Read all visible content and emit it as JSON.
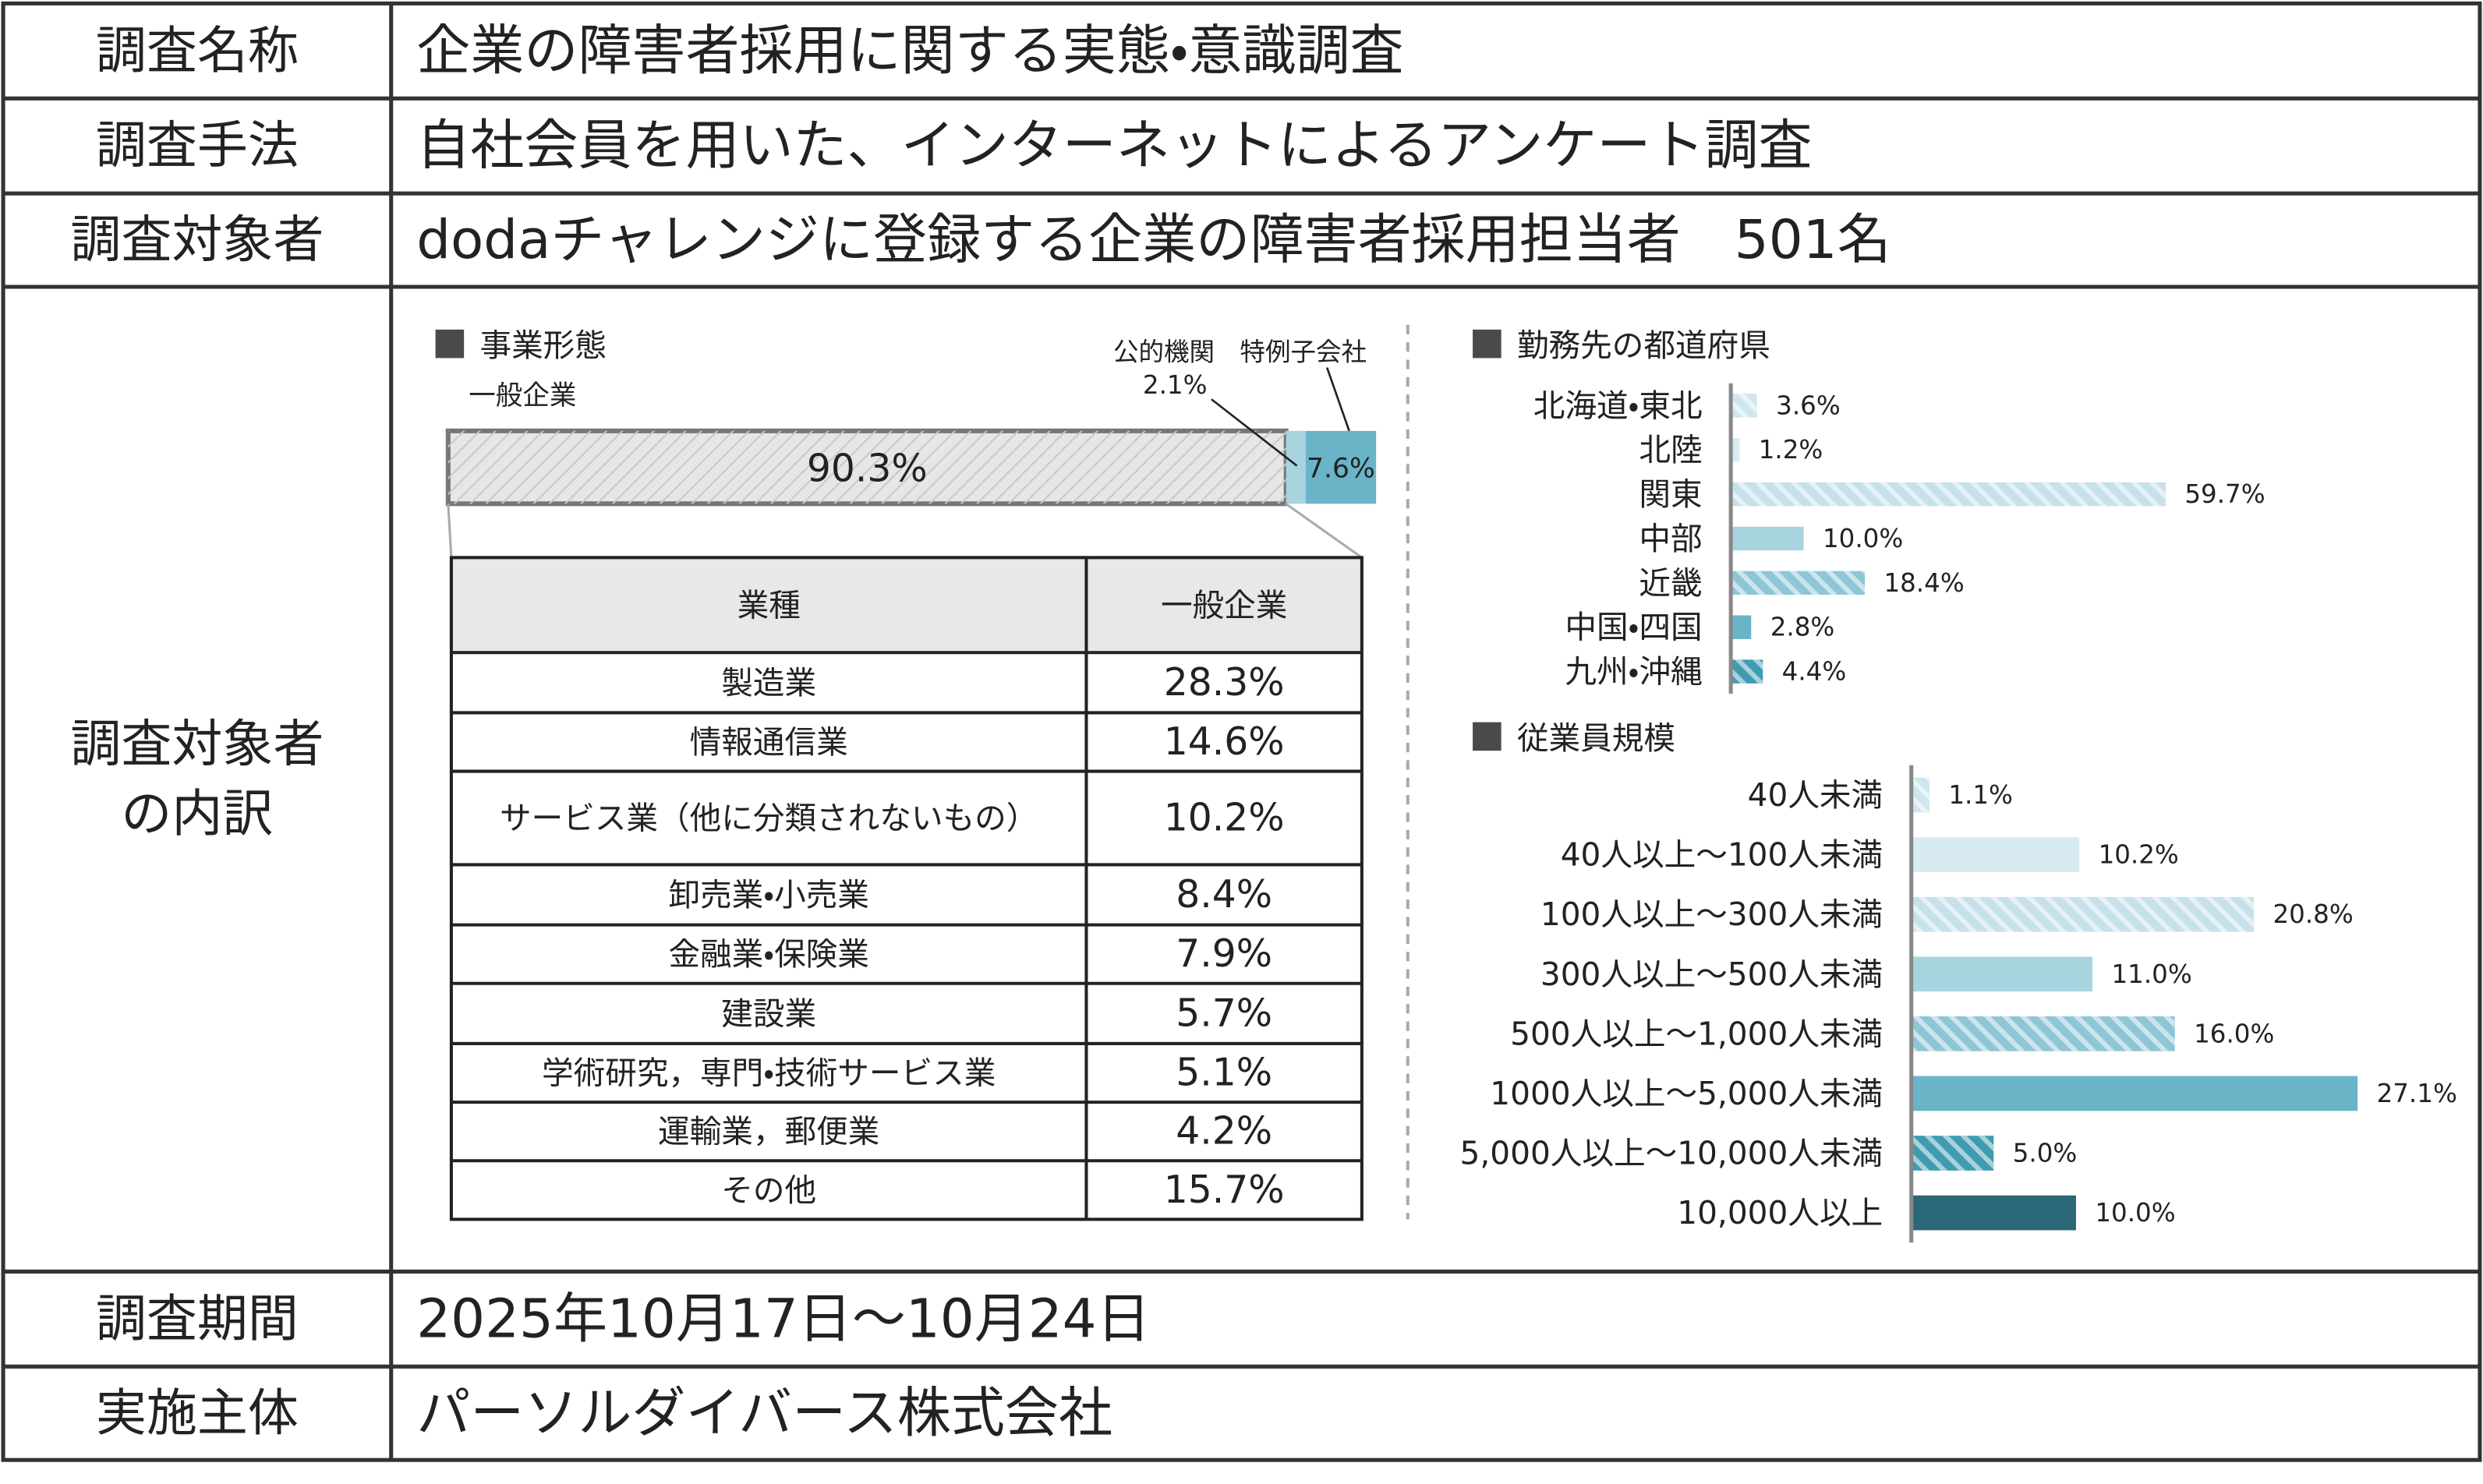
{
  "rows": [
    {
      "label": "調査名称",
      "value": "企業の障害者採用に関する実態・意識調査"
    },
    {
      "label": "調査手法",
      "value": "自社会員を用いた、インターネットによるアンケート調査"
    },
    {
      "label": "調査対象者",
      "value": "dodaチャレンジに登録する企業の障害者採用担当者　501名"
    },
    {
      "label_lines": [
        "調査対象者",
        "の内訳"
      ]
    },
    {
      "label": "調査期間",
      "value": "2025年10月17日～10月24日"
    },
    {
      "label": "実施主体",
      "value": "パーソルダイバース株式会社"
    }
  ],
  "chart_data": [
    {
      "type": "stacked_bar",
      "title": "事業形態",
      "series": [
        {
          "name": "一般企業",
          "color": "#e6e6e6",
          "values": [
            90.3
          ],
          "value_labels": [
            "90.3%"
          ]
        },
        {
          "name": "公的機関",
          "color": "#a8d4e0",
          "values": [
            2.1
          ],
          "value_labels": [
            "2.1%"
          ]
        },
        {
          "name": "特例子会社",
          "color": "#6ab4c8",
          "values": [
            7.6
          ],
          "value_labels": [
            "7.6%"
          ]
        }
      ]
    },
    {
      "type": "bar",
      "title": "勤務先の都道府県",
      "categories": [
        "北海道・東北",
        "北陸",
        "関東",
        "中部",
        "近畿",
        "中国・四国",
        "九州・沖縄"
      ],
      "values": [
        3.6,
        1.2,
        59.7,
        10.0,
        18.4,
        2.8,
        4.4
      ],
      "value_labels": [
        "3.6%",
        "1.2%",
        "59.7%",
        "10.0%",
        "18.4%",
        "2.8%",
        "4.4%"
      ],
      "colors": [
        "#cfe6ee",
        "#d8ebf1",
        "#c6e1ea",
        "#a8d4e0",
        "#8ec6d6",
        "#6ab4c8",
        "#3f9bb0"
      ],
      "hatched": [
        true,
        false,
        true,
        false,
        true,
        false,
        true
      ]
    },
    {
      "type": "bar",
      "title": "従業員規模",
      "categories": [
        "40人未満",
        "40人以上～100人未満",
        "100人以上～300人未満",
        "300人以上～500人未満",
        "500人以上～1,000人未満",
        "1000人以上～5,000人未満",
        "5,000人以上～10,000人未満",
        "10,000人以上"
      ],
      "values": [
        1.1,
        10.2,
        20.8,
        11.0,
        16.0,
        27.1,
        5.0,
        10.0
      ],
      "value_labels": [
        "1.1%",
        "10.2%",
        "20.8%",
        "11.0%",
        "16.0%",
        "27.1%",
        "5.0%",
        "10.0%"
      ],
      "colors": [
        "#cfe6ee",
        "#d8ebf1",
        "#c6e1ea",
        "#a8d4e0",
        "#8ec6d6",
        "#6ab4c8",
        "#3f9bb0",
        "#2a6878"
      ],
      "hatched": [
        true,
        false,
        true,
        false,
        true,
        false,
        true,
        false
      ]
    }
  ],
  "industry_table": {
    "header": [
      "業種",
      "一般企業"
    ],
    "rows": [
      [
        "製造業",
        "28.3%"
      ],
      [
        "情報通信業",
        "14.6%"
      ],
      [
        "サービス業（他に分類されないもの）",
        "10.2%"
      ],
      [
        "卸売業・小売業",
        "8.4%"
      ],
      [
        "金融業・保険業",
        "7.9%"
      ],
      [
        "建設業",
        "5.7%"
      ],
      [
        "学術研究，専門・技術サービス業",
        "5.1%"
      ],
      [
        "運輸業，郵便業",
        "4.2%"
      ],
      [
        "その他",
        "15.7%"
      ]
    ]
  }
}
